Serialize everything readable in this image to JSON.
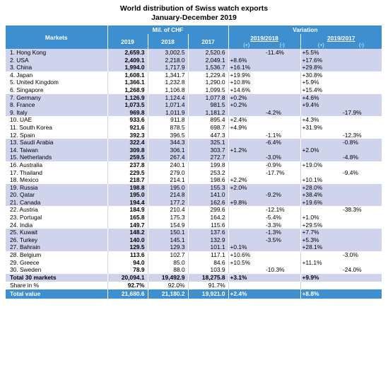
{
  "title_line1": "World distribution of Swiss watch exports",
  "title_line2": "January-December 2019",
  "header": {
    "markets": "Markets",
    "mil_chf": "Mil. of CHF",
    "variation": "Variation",
    "y2019": "2019",
    "y2018": "2018",
    "y2017": "2017",
    "v1918": "2019/2018",
    "v1917": "2019/2017",
    "plus": "(+)",
    "minus": "(-)"
  },
  "rows": [
    {
      "m": "1. Hong Kong",
      "a": "2,659.3",
      "b": "3,002.5",
      "c": "2,520.6",
      "p1": "",
      "n1": "-11.4%",
      "p2": "+5.5%",
      "n2": ""
    },
    {
      "m": "2. USA",
      "a": "2,409.1",
      "b": "2,218.0",
      "c": "2,049.1",
      "p1": "+8.6%",
      "n1": "",
      "p2": "+17.6%",
      "n2": ""
    },
    {
      "m": "3. China",
      "a": "1,994.0",
      "b": "1,717.9",
      "c": "1,536.7",
      "p1": "+16.1%",
      "n1": "",
      "p2": "+29.8%",
      "n2": ""
    },
    {
      "m": "4. Japan",
      "a": "1,608.1",
      "b": "1,341.7",
      "c": "1,229.4",
      "p1": "+19.9%",
      "n1": "",
      "p2": "+30.8%",
      "n2": ""
    },
    {
      "m": "5. United Kingdom",
      "a": "1,366.1",
      "b": "1,232.8",
      "c": "1,290.0",
      "p1": "+10.8%",
      "n1": "",
      "p2": "+5.9%",
      "n2": ""
    },
    {
      "m": "6. Singapore",
      "a": "1,268.9",
      "b": "1,106.8",
      "c": "1,099.5",
      "p1": "+14.6%",
      "n1": "",
      "p2": "+15.4%",
      "n2": ""
    },
    {
      "m": "7. Germany",
      "a": "1,126.9",
      "b": "1,124.4",
      "c": "1,077.8",
      "p1": "+0.2%",
      "n1": "",
      "p2": "+4.6%",
      "n2": ""
    },
    {
      "m": "8. France",
      "a": "1,073.5",
      "b": "1,071.4",
      "c": "981.5",
      "p1": "+0.2%",
      "n1": "",
      "p2": "+9.4%",
      "n2": ""
    },
    {
      "m": "9. Italy",
      "a": "969.8",
      "b": "1,011.9",
      "c": "1,181.2",
      "p1": "",
      "n1": "-4.2%",
      "p2": "",
      "n2": "-17.9%"
    },
    {
      "m": "10. UAE",
      "a": "933.6",
      "b": "911.8",
      "c": "895.4",
      "p1": "+2.4%",
      "n1": "",
      "p2": "+4.3%",
      "n2": ""
    },
    {
      "m": "11. South Korea",
      "a": "921.6",
      "b": "878.5",
      "c": "698.7",
      "p1": "+4.9%",
      "n1": "",
      "p2": "+31.9%",
      "n2": ""
    },
    {
      "m": "12. Spain",
      "a": "392.3",
      "b": "396.5",
      "c": "447.3",
      "p1": "",
      "n1": "-1.1%",
      "p2": "",
      "n2": "-12.3%"
    },
    {
      "m": "13. Saudi Arabia",
      "a": "322.4",
      "b": "344.3",
      "c": "325.1",
      "p1": "",
      "n1": "-6.4%",
      "p2": "",
      "n2": "-0.8%"
    },
    {
      "m": "14. Taiwan",
      "a": "309.8",
      "b": "306.1",
      "c": "303.7",
      "p1": "+1.2%",
      "n1": "",
      "p2": "+2.0%",
      "n2": ""
    },
    {
      "m": "15. Netherlands",
      "a": "259.5",
      "b": "267.4",
      "c": "272.7",
      "p1": "",
      "n1": "-3.0%",
      "p2": "",
      "n2": "-4.8%"
    },
    {
      "m": "16. Australia",
      "a": "237.8",
      "b": "240.1",
      "c": "199.8",
      "p1": "",
      "n1": "-0.9%",
      "p2": "+19.0%",
      "n2": ""
    },
    {
      "m": "17. Thailand",
      "a": "229.5",
      "b": "279.0",
      "c": "253.2",
      "p1": "",
      "n1": "-17.7%",
      "p2": "",
      "n2": "-9.4%"
    },
    {
      "m": "18. Mexico",
      "a": "218.7",
      "b": "214.1",
      "c": "198.6",
      "p1": "+2.2%",
      "n1": "",
      "p2": "+10.1%",
      "n2": ""
    },
    {
      "m": "19. Russia",
      "a": "198.8",
      "b": "195.0",
      "c": "155.3",
      "p1": "+2.0%",
      "n1": "",
      "p2": "+28.0%",
      "n2": ""
    },
    {
      "m": "20. Qatar",
      "a": "195.0",
      "b": "214.8",
      "c": "141.0",
      "p1": "",
      "n1": "-9.2%",
      "p2": "+38.4%",
      "n2": ""
    },
    {
      "m": "21. Canada",
      "a": "194.4",
      "b": "177.2",
      "c": "162.6",
      "p1": "+9.8%",
      "n1": "",
      "p2": "+19.6%",
      "n2": ""
    },
    {
      "m": "22. Austria",
      "a": "184.9",
      "b": "210.4",
      "c": "299.6",
      "p1": "",
      "n1": "-12.1%",
      "p2": "",
      "n2": "-38.3%"
    },
    {
      "m": "23. Portugal",
      "a": "165.8",
      "b": "175.3",
      "c": "164.2",
      "p1": "",
      "n1": "-5.4%",
      "p2": "+1.0%",
      "n2": ""
    },
    {
      "m": "24. India",
      "a": "149.7",
      "b": "154.9",
      "c": "115.6",
      "p1": "",
      "n1": "-3.3%",
      "p2": "+29.5%",
      "n2": ""
    },
    {
      "m": "25. Kuwait",
      "a": "148.2",
      "b": "150.1",
      "c": "137.6",
      "p1": "",
      "n1": "-1.3%",
      "p2": "+7.7%",
      "n2": ""
    },
    {
      "m": "26. Turkey",
      "a": "140.0",
      "b": "145.1",
      "c": "132.9",
      "p1": "",
      "n1": "-3.5%",
      "p2": "+5.3%",
      "n2": ""
    },
    {
      "m": "27. Bahrain",
      "a": "129.5",
      "b": "129.3",
      "c": "101.1",
      "p1": "+0.1%",
      "n1": "",
      "p2": "+28.1%",
      "n2": ""
    },
    {
      "m": "28. Belgium",
      "a": "113.6",
      "b": "102.7",
      "c": "117.1",
      "p1": "+10.6%",
      "n1": "",
      "p2": "",
      "n2": "-3.0%"
    },
    {
      "m": "29. Greece",
      "a": "94.0",
      "b": "85.0",
      "c": "84.6",
      "p1": "+10.5%",
      "n1": "",
      "p2": "+11.1%",
      "n2": ""
    },
    {
      "m": "30. Sweden",
      "a": "78.9",
      "b": "88.0",
      "c": "103.9",
      "p1": "",
      "n1": "-10.3%",
      "p2": "",
      "n2": "-24.0%"
    }
  ],
  "total30": {
    "m": "Total 30 markets",
    "a": "20,094.1",
    "b": "19,492.9",
    "c": "18,275.8",
    "p1": "+3.1%",
    "p2": "+9.9%"
  },
  "share": {
    "m": "Share in %",
    "a": "92.7%",
    "b": "92.0%",
    "c": "91.7%"
  },
  "total_value": {
    "m": "Total value",
    "a": "21,680.6",
    "b": "21,180.2",
    "c": "19,921.0",
    "p1": "+2.4%",
    "p2": "+8.8%"
  },
  "colors": {
    "header_blue": "#3d8fd0",
    "row_shade": "#cfd3ec"
  }
}
